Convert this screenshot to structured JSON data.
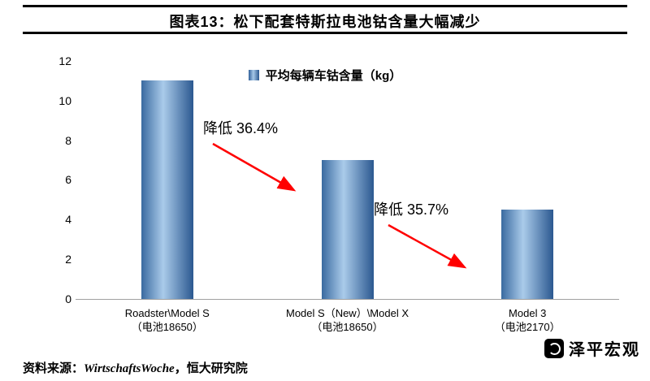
{
  "chart_data": {
    "type": "bar",
    "title": "图表13：松下配套特斯拉电池钴含量大幅减少",
    "legend": "平均每辆车钴含量（kg）",
    "xlabel": "",
    "ylabel": "",
    "ylim": [
      0,
      12
    ],
    "yticks": [
      0,
      2,
      4,
      6,
      8,
      10,
      12
    ],
    "grid": false,
    "legend_position": "top-center",
    "bar_color_edge": "#2b5890",
    "bar_color_center": "#aacbea",
    "categories": [
      {
        "line1": "Roadster\\Model S",
        "line2": "（电池18650）"
      },
      {
        "line1": "Model S（New）\\Model X",
        "line2": "（电池18650）"
      },
      {
        "line1": "Model 3",
        "line2": "（电池2170）"
      }
    ],
    "values": [
      11,
      7,
      4.5
    ],
    "annotations": [
      {
        "label": "降低 36.4%",
        "from": "Roadster\\Model S",
        "to": "Model S（New）\\Model X",
        "color": "#ff0000"
      },
      {
        "label": "降低 35.7%",
        "from": "Model S（New）\\Model X",
        "to": "Model 3",
        "color": "#ff0000"
      }
    ]
  },
  "footer": {
    "source_prefix": "资料来源：",
    "source_latin": "WirtschaftsWoche",
    "source_suffix": "，恒大研究院",
    "watermark": "泽平宏观"
  }
}
